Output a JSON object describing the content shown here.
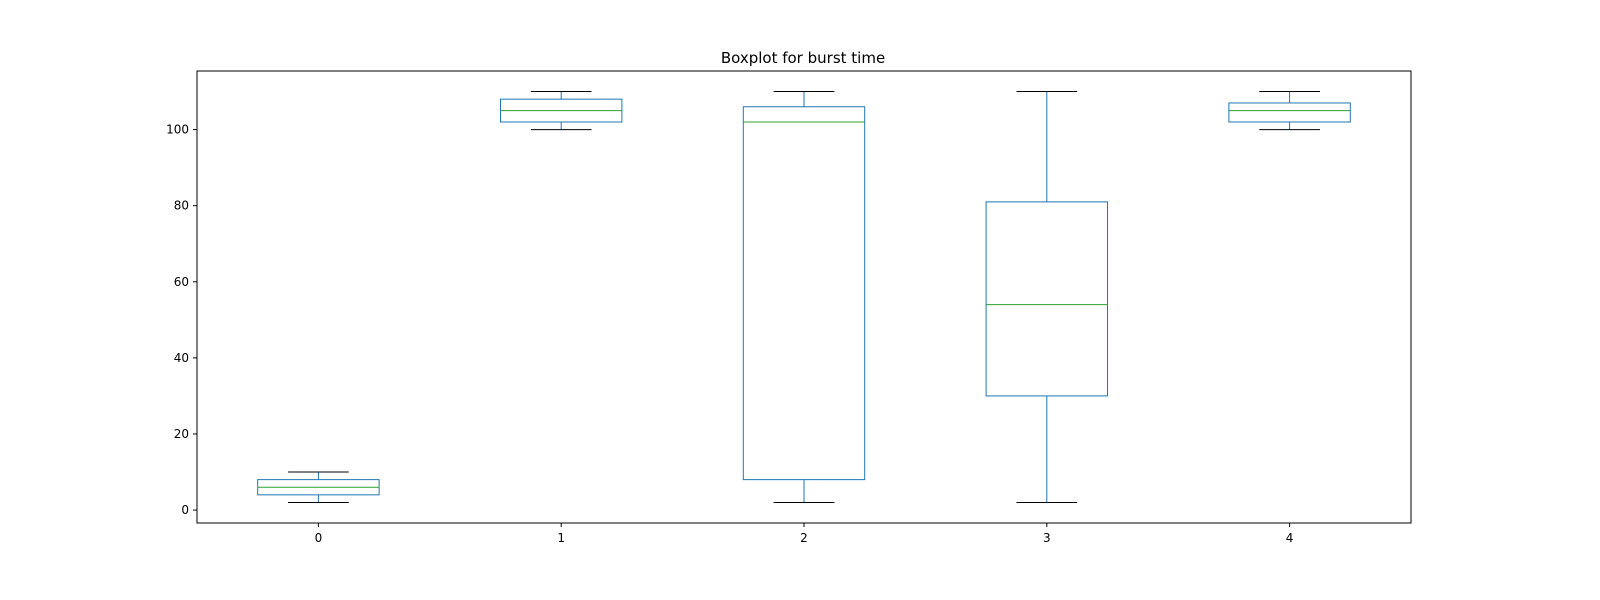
{
  "chart_data": {
    "type": "box",
    "title": "Boxplot for burst time",
    "xlabel": "",
    "ylabel": "",
    "categories": [
      "0",
      "1",
      "2",
      "3",
      "4"
    ],
    "boxes": [
      {
        "category": "0",
        "whisker_low": 2,
        "q1": 4,
        "median": 6,
        "q3": 8,
        "whisker_high": 10
      },
      {
        "category": "1",
        "whisker_low": 100,
        "q1": 102,
        "median": 105,
        "q3": 108,
        "whisker_high": 110
      },
      {
        "category": "2",
        "whisker_low": 2,
        "q1": 8,
        "median": 102,
        "q3": 106,
        "whisker_high": 110
      },
      {
        "category": "3",
        "whisker_low": 2,
        "q1": 30,
        "median": 54,
        "q3": 81,
        "whisker_high": 110
      },
      {
        "category": "4",
        "whisker_low": 100,
        "q1": 102,
        "median": 105,
        "q3": 107,
        "whisker_high": 110
      }
    ],
    "ylim": [
      -3.4,
      115.4
    ],
    "yticks": [
      0,
      20,
      40,
      60,
      80,
      100
    ],
    "grid": false,
    "colors": {
      "box": "#1f77b4",
      "median": "#2ca02c",
      "cap": "#000000",
      "axes": "#000000"
    }
  }
}
